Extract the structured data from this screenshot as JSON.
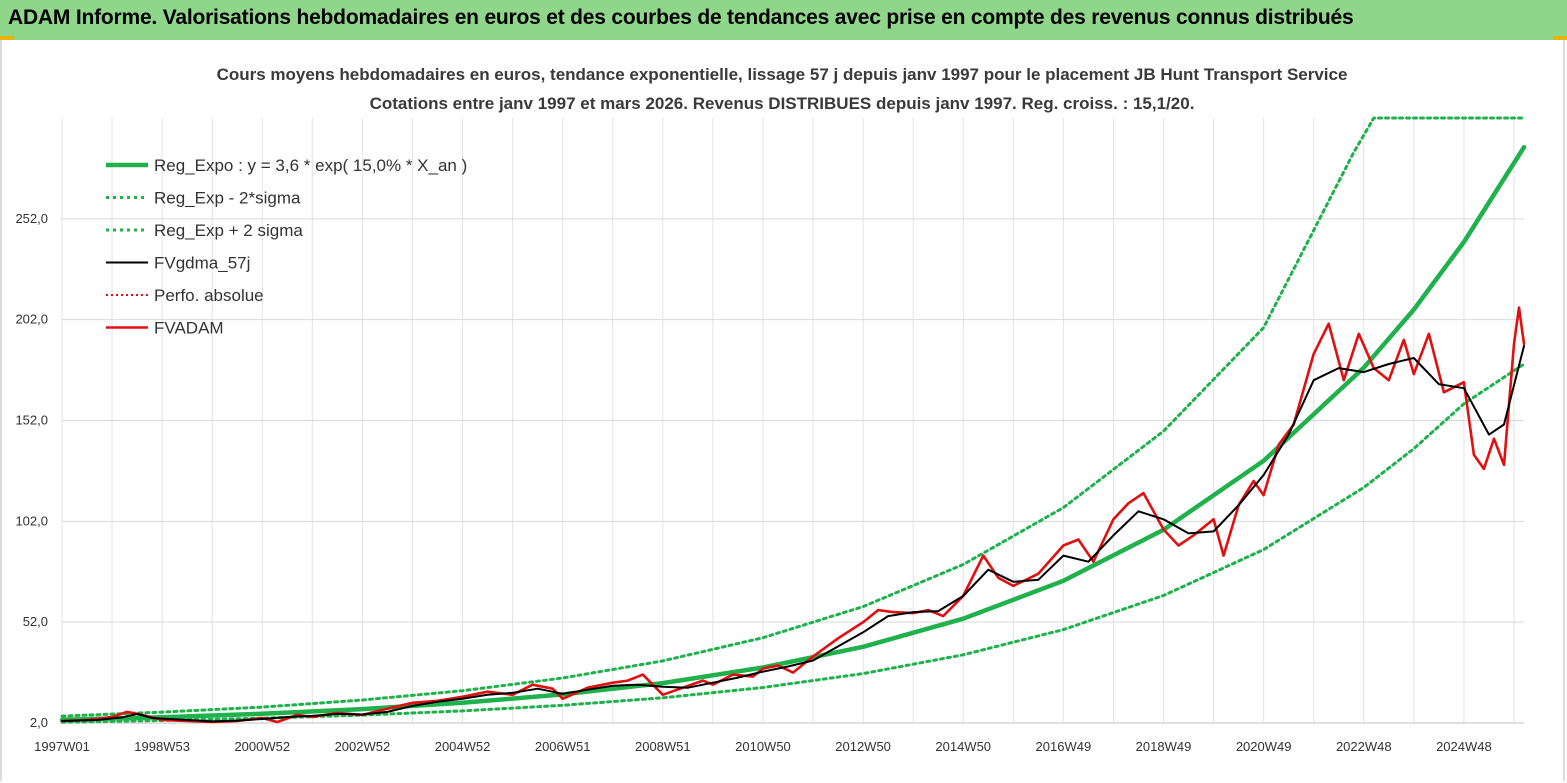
{
  "banner": {
    "title": "ADAM Informe. Valorisations hebdomadaires en euros et des courbes de tendances avec prise en compte des revenus connus distribués"
  },
  "chart_data": {
    "type": "line",
    "title": "Cours moyens hebdomadaires en euros, tendance exponentielle, lissage 57 j depuis janv 1997 pour le placement JB Hunt Transport Service",
    "subtitle": "Cotations entre janv 1997 et mars 2026. Revenus DISTRIBUES depuis janv 1997. Reg. croiss. : 15,1/20.",
    "xlabel": "",
    "ylabel": "",
    "xlim": [
      1997.0,
      2026.2
    ],
    "ylim": [
      2.0,
      302.0
    ],
    "grid": true,
    "legend_position": "top-left",
    "x_ticks": [
      {
        "x": 1997.0,
        "label": "1997W01"
      },
      {
        "x": 1999.0,
        "label": "1998W53"
      },
      {
        "x": 2001.0,
        "label": "2000W52"
      },
      {
        "x": 2003.0,
        "label": "2002W52"
      },
      {
        "x": 2005.0,
        "label": "2004W52"
      },
      {
        "x": 2007.0,
        "label": "2006W51"
      },
      {
        "x": 2009.0,
        "label": "2008W51"
      },
      {
        "x": 2011.0,
        "label": "2010W50"
      },
      {
        "x": 2013.0,
        "label": "2012W50"
      },
      {
        "x": 2015.0,
        "label": "2014W50"
      },
      {
        "x": 2017.0,
        "label": "2016W49"
      },
      {
        "x": 2019.0,
        "label": "2018W49"
      },
      {
        "x": 2021.0,
        "label": "2020W49"
      },
      {
        "x": 2023.0,
        "label": "2022W48"
      },
      {
        "x": 2025.0,
        "label": "2024W48"
      }
    ],
    "y_ticks": [
      {
        "y": 2.0,
        "label": "2,0"
      },
      {
        "y": 52.0,
        "label": "52,0"
      },
      {
        "y": 102.0,
        "label": "102,0"
      },
      {
        "y": 152.0,
        "label": "152,0"
      },
      {
        "y": 202.0,
        "label": "202,0"
      },
      {
        "y": 252.0,
        "label": "252,0"
      }
    ],
    "series": [
      {
        "name": "Reg_Expo : y = 3,6 * exp( 15,0% *  X_an )",
        "color": "#1fb14c",
        "style": "solid",
        "points": [
          [
            1997.0,
            3.6
          ],
          [
            1999.0,
            4.9
          ],
          [
            2001.0,
            6.6
          ],
          [
            2003.0,
            8.9
          ],
          [
            2005.0,
            12.0
          ],
          [
            2007.0,
            16.2
          ],
          [
            2009.0,
            21.8
          ],
          [
            2011.0,
            29.5
          ],
          [
            2013.0,
            39.8
          ],
          [
            2015.0,
            53.7
          ],
          [
            2017.0,
            72.5
          ],
          [
            2019.0,
            97.8
          ],
          [
            2021.0,
            132.0
          ],
          [
            2023.0,
            178.2
          ],
          [
            2024.0,
            207.0
          ],
          [
            2025.0,
            240.5
          ],
          [
            2026.2,
            287.5
          ]
        ]
      },
      {
        "name": "Reg_Exp - 2*sigma",
        "color": "#1fb14c",
        "style": "dotted",
        "points": [
          [
            1997.0,
            2.4
          ],
          [
            1999.0,
            3.3
          ],
          [
            2001.0,
            4.4
          ],
          [
            2003.0,
            5.9
          ],
          [
            2005.0,
            8.0
          ],
          [
            2007.0,
            10.8
          ],
          [
            2009.0,
            14.5
          ],
          [
            2011.0,
            19.6
          ],
          [
            2013.0,
            26.5
          ],
          [
            2015.0,
            35.8
          ],
          [
            2017.0,
            48.3
          ],
          [
            2019.0,
            65.2
          ],
          [
            2021.0,
            88.0
          ],
          [
            2023.0,
            118.8
          ],
          [
            2024.0,
            138.0
          ],
          [
            2025.0,
            160.3
          ],
          [
            2026.2,
            180.0
          ]
        ]
      },
      {
        "name": "Reg_Exp + 2 sigma",
        "color": "#1fb14c",
        "style": "dotted",
        "points": [
          [
            1997.0,
            5.4
          ],
          [
            1999.0,
            7.4
          ],
          [
            2001.0,
            9.9
          ],
          [
            2003.0,
            13.4
          ],
          [
            2005.0,
            18.0
          ],
          [
            2007.0,
            24.3
          ],
          [
            2009.0,
            32.8
          ],
          [
            2011.0,
            44.3
          ],
          [
            2013.0,
            59.7
          ],
          [
            2015.0,
            80.6
          ],
          [
            2017.0,
            108.8
          ],
          [
            2019.0,
            146.7
          ],
          [
            2021.0,
            198.0
          ],
          [
            2022.8,
            285.0
          ],
          [
            2023.2,
            302.0
          ],
          [
            2026.2,
            302.0
          ]
        ]
      },
      {
        "name": "FVgdma_57j",
        "color": "#000000",
        "style": "solid",
        "points": [
          [
            1997.0,
            3.0
          ],
          [
            1997.7,
            3.5
          ],
          [
            1998.2,
            4.8
          ],
          [
            1998.5,
            6.5
          ],
          [
            1998.8,
            4.5
          ],
          [
            1999.5,
            3.5
          ],
          [
            2000.0,
            2.8
          ],
          [
            2000.5,
            3.2
          ],
          [
            2001.0,
            4.0
          ],
          [
            2001.5,
            5.0
          ],
          [
            2002.0,
            5.5
          ],
          [
            2002.5,
            6.5
          ],
          [
            2003.0,
            6.2
          ],
          [
            2003.5,
            7.5
          ],
          [
            2004.0,
            10.5
          ],
          [
            2004.5,
            12.5
          ],
          [
            2005.0,
            14.0
          ],
          [
            2005.5,
            16.0
          ],
          [
            2006.0,
            17.0
          ],
          [
            2006.5,
            19.0
          ],
          [
            2007.0,
            16.5
          ],
          [
            2007.5,
            18.5
          ],
          [
            2008.0,
            20.5
          ],
          [
            2008.5,
            21.0
          ],
          [
            2009.0,
            20.0
          ],
          [
            2009.5,
            19.5
          ],
          [
            2010.0,
            22.0
          ],
          [
            2010.5,
            24.5
          ],
          [
            2011.0,
            27.5
          ],
          [
            2011.5,
            30.0
          ],
          [
            2012.0,
            33.0
          ],
          [
            2012.5,
            40.0
          ],
          [
            2013.0,
            47.0
          ],
          [
            2013.5,
            55.0
          ],
          [
            2014.0,
            57.0
          ],
          [
            2014.5,
            57.5
          ],
          [
            2015.0,
            65.0
          ],
          [
            2015.5,
            78.0
          ],
          [
            2016.0,
            72.0
          ],
          [
            2016.5,
            73.0
          ],
          [
            2017.0,
            85.0
          ],
          [
            2017.5,
            82.0
          ],
          [
            2018.0,
            95.0
          ],
          [
            2018.5,
            107.0
          ],
          [
            2019.0,
            103.0
          ],
          [
            2019.5,
            96.0
          ],
          [
            2020.0,
            97.0
          ],
          [
            2020.5,
            110.0
          ],
          [
            2021.0,
            125.0
          ],
          [
            2021.5,
            145.0
          ],
          [
            2022.0,
            172.0
          ],
          [
            2022.5,
            178.0
          ],
          [
            2023.0,
            176.0
          ],
          [
            2023.5,
            180.0
          ],
          [
            2024.0,
            183.0
          ],
          [
            2024.5,
            170.0
          ],
          [
            2025.0,
            168.0
          ],
          [
            2025.5,
            145.0
          ],
          [
            2025.8,
            150.0
          ],
          [
            2026.2,
            189.0
          ]
        ]
      },
      {
        "name": "Perfo. absolue",
        "color": "#e01010",
        "style": "dotted",
        "points": []
      },
      {
        "name": "FVADAM",
        "color": "#e01010",
        "style": "solid",
        "points": [
          [
            1997.0,
            3.0
          ],
          [
            1997.5,
            3.5
          ],
          [
            1998.0,
            5.0
          ],
          [
            1998.3,
            7.5
          ],
          [
            1998.6,
            6.0
          ],
          [
            1999.0,
            3.5
          ],
          [
            1999.5,
            3.0
          ],
          [
            2000.0,
            2.5
          ],
          [
            2000.5,
            3.0
          ],
          [
            2001.0,
            4.5
          ],
          [
            2001.3,
            2.5
          ],
          [
            2001.7,
            6.0
          ],
          [
            2002.0,
            5.0
          ],
          [
            2002.5,
            7.0
          ],
          [
            2003.0,
            6.0
          ],
          [
            2003.4,
            8.5
          ],
          [
            2004.0,
            12.0
          ],
          [
            2004.5,
            13.0
          ],
          [
            2005.0,
            15.0
          ],
          [
            2005.5,
            17.5
          ],
          [
            2006.0,
            16.0
          ],
          [
            2006.4,
            21.0
          ],
          [
            2006.8,
            19.0
          ],
          [
            2007.0,
            14.0
          ],
          [
            2007.5,
            19.5
          ],
          [
            2008.0,
            22.0
          ],
          [
            2008.3,
            23.0
          ],
          [
            2008.6,
            26.0
          ],
          [
            2009.0,
            16.0
          ],
          [
            2009.4,
            19.5
          ],
          [
            2009.8,
            23.0
          ],
          [
            2010.0,
            21.0
          ],
          [
            2010.4,
            26.0
          ],
          [
            2010.8,
            25.0
          ],
          [
            2011.0,
            29.0
          ],
          [
            2011.3,
            30.5
          ],
          [
            2011.6,
            27.0
          ],
          [
            2012.0,
            35.0
          ],
          [
            2012.5,
            44.0
          ],
          [
            2013.0,
            52.0
          ],
          [
            2013.3,
            58.0
          ],
          [
            2013.6,
            57.0
          ],
          [
            2014.0,
            56.5
          ],
          [
            2014.3,
            58.0
          ],
          [
            2014.6,
            55.0
          ],
          [
            2015.0,
            65.0
          ],
          [
            2015.4,
            85.0
          ],
          [
            2015.7,
            74.0
          ],
          [
            2016.0,
            70.0
          ],
          [
            2016.5,
            76.0
          ],
          [
            2017.0,
            90.0
          ],
          [
            2017.3,
            93.0
          ],
          [
            2017.6,
            82.0
          ],
          [
            2018.0,
            103.0
          ],
          [
            2018.3,
            111.0
          ],
          [
            2018.6,
            116.0
          ],
          [
            2019.0,
            98.0
          ],
          [
            2019.3,
            90.0
          ],
          [
            2019.6,
            95.0
          ],
          [
            2020.0,
            103.0
          ],
          [
            2020.2,
            85.0
          ],
          [
            2020.5,
            110.0
          ],
          [
            2020.8,
            122.0
          ],
          [
            2021.0,
            115.0
          ],
          [
            2021.3,
            140.0
          ],
          [
            2021.6,
            150.0
          ],
          [
            2022.0,
            185.0
          ],
          [
            2022.3,
            200.0
          ],
          [
            2022.6,
            172.0
          ],
          [
            2022.9,
            195.0
          ],
          [
            2023.2,
            178.0
          ],
          [
            2023.5,
            172.0
          ],
          [
            2023.8,
            192.0
          ],
          [
            2024.0,
            175.0
          ],
          [
            2024.3,
            195.0
          ],
          [
            2024.6,
            166.0
          ],
          [
            2025.0,
            171.0
          ],
          [
            2025.2,
            135.0
          ],
          [
            2025.4,
            128.0
          ],
          [
            2025.6,
            143.0
          ],
          [
            2025.8,
            130.0
          ],
          [
            2026.0,
            190.0
          ],
          [
            2026.1,
            208.0
          ],
          [
            2026.2,
            190.0
          ]
        ]
      }
    ]
  }
}
